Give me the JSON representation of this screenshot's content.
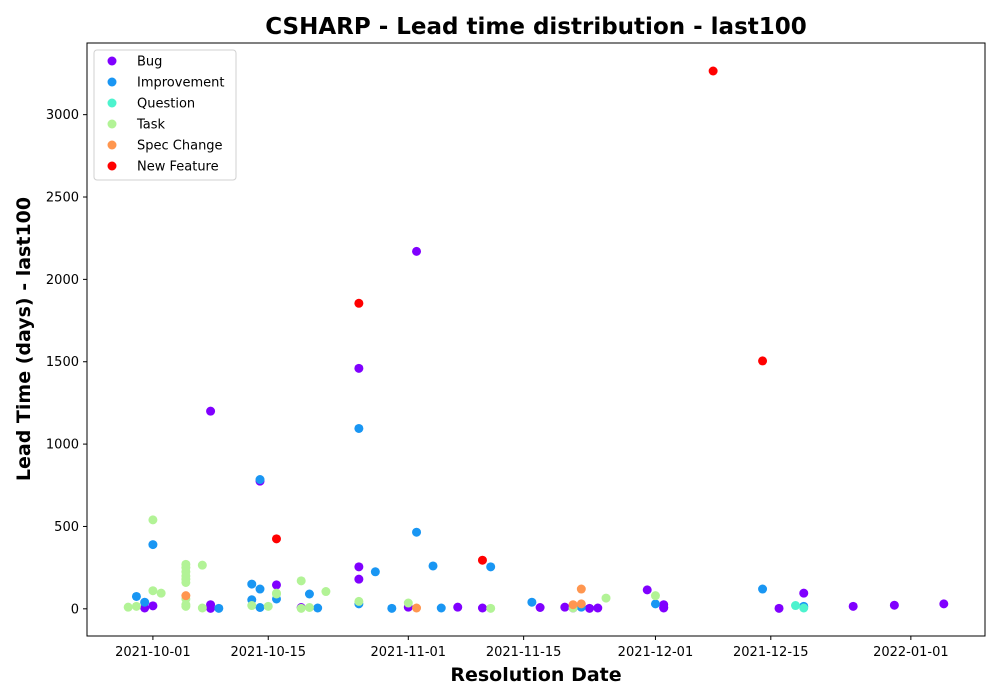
{
  "chart_data": {
    "type": "scatter",
    "title": "CSHARP - Lead time distribution - last100",
    "xlabel": "Resolution Date",
    "ylabel": "Lead Time (days) - last100",
    "xlim": [
      "2021-09-23",
      "2022-01-10"
    ],
    "ylim": [
      -165,
      3435
    ],
    "x_ticks": [
      "2021-10-01",
      "2021-10-15",
      "2021-11-01",
      "2021-11-15",
      "2021-12-01",
      "2021-12-15",
      "2022-01-01"
    ],
    "y_ticks": [
      0,
      500,
      1000,
      1500,
      2000,
      2500,
      3000
    ],
    "grid": false,
    "legend_position": "top-left",
    "series": [
      {
        "name": "Bug",
        "color": "#8000ff",
        "points": [
          {
            "x": "2021-09-30",
            "y": 5
          },
          {
            "x": "2021-10-01",
            "y": 18
          },
          {
            "x": "2021-10-08",
            "y": 1200
          },
          {
            "x": "2021-10-08",
            "y": 25
          },
          {
            "x": "2021-10-08",
            "y": 3
          },
          {
            "x": "2021-10-14",
            "y": 775
          },
          {
            "x": "2021-10-16",
            "y": 145
          },
          {
            "x": "2021-10-19",
            "y": 8
          },
          {
            "x": "2021-10-26",
            "y": 1460
          },
          {
            "x": "2021-10-26",
            "y": 255
          },
          {
            "x": "2021-10-26",
            "y": 180
          },
          {
            "x": "2021-11-01",
            "y": 10
          },
          {
            "x": "2021-11-02",
            "y": 2170
          },
          {
            "x": "2021-11-07",
            "y": 10
          },
          {
            "x": "2021-11-10",
            "y": 5
          },
          {
            "x": "2021-11-17",
            "y": 8
          },
          {
            "x": "2021-11-20",
            "y": 10
          },
          {
            "x": "2021-11-21",
            "y": 5
          },
          {
            "x": "2021-11-22",
            "y": 12
          },
          {
            "x": "2021-11-24",
            "y": 5
          },
          {
            "x": "2021-11-23",
            "y": 3
          },
          {
            "x": "2021-11-30",
            "y": 115
          },
          {
            "x": "2021-12-02",
            "y": 8
          },
          {
            "x": "2021-12-02",
            "y": 25
          },
          {
            "x": "2021-12-02",
            "y": 5
          },
          {
            "x": "2021-12-16",
            "y": 3
          },
          {
            "x": "2021-12-19",
            "y": 95
          },
          {
            "x": "2021-12-25",
            "y": 15
          },
          {
            "x": "2021-12-30",
            "y": 22
          },
          {
            "x": "2022-01-05",
            "y": 30
          }
        ]
      },
      {
        "name": "Improvement",
        "color": "#1996f3",
        "points": [
          {
            "x": "2021-09-29",
            "y": 75
          },
          {
            "x": "2021-09-30",
            "y": 40
          },
          {
            "x": "2021-10-01",
            "y": 390
          },
          {
            "x": "2021-10-09",
            "y": 3
          },
          {
            "x": "2021-10-13",
            "y": 150
          },
          {
            "x": "2021-10-13",
            "y": 55
          },
          {
            "x": "2021-10-14",
            "y": 785
          },
          {
            "x": "2021-10-14",
            "y": 120
          },
          {
            "x": "2021-10-14",
            "y": 8
          },
          {
            "x": "2021-10-16",
            "y": 60
          },
          {
            "x": "2021-10-20",
            "y": 90
          },
          {
            "x": "2021-10-21",
            "y": 5
          },
          {
            "x": "2021-10-26",
            "y": 1095
          },
          {
            "x": "2021-10-26",
            "y": 30
          },
          {
            "x": "2021-10-28",
            "y": 225
          },
          {
            "x": "2021-10-30",
            "y": 3
          },
          {
            "x": "2021-11-02",
            "y": 465
          },
          {
            "x": "2021-11-04",
            "y": 260
          },
          {
            "x": "2021-11-05",
            "y": 5
          },
          {
            "x": "2021-11-11",
            "y": 255
          },
          {
            "x": "2021-11-16",
            "y": 40
          },
          {
            "x": "2021-11-22",
            "y": 10
          },
          {
            "x": "2021-12-01",
            "y": 30
          },
          {
            "x": "2021-12-14",
            "y": 120
          },
          {
            "x": "2021-12-19",
            "y": 15
          }
        ]
      },
      {
        "name": "Question",
        "color": "#4df3ce",
        "points": [
          {
            "x": "2021-12-19",
            "y": 5
          },
          {
            "x": "2021-12-18",
            "y": 20
          }
        ]
      },
      {
        "name": "Task",
        "color": "#b2f396",
        "points": [
          {
            "x": "2021-09-28",
            "y": 10
          },
          {
            "x": "2021-09-29",
            "y": 15
          },
          {
            "x": "2021-10-01",
            "y": 540
          },
          {
            "x": "2021-10-01",
            "y": 110
          },
          {
            "x": "2021-10-02",
            "y": 95
          },
          {
            "x": "2021-10-05",
            "y": 270
          },
          {
            "x": "2021-10-05",
            "y": 250
          },
          {
            "x": "2021-10-05",
            "y": 225
          },
          {
            "x": "2021-10-05",
            "y": 200
          },
          {
            "x": "2021-10-05",
            "y": 180
          },
          {
            "x": "2021-10-05",
            "y": 160
          },
          {
            "x": "2021-10-05",
            "y": 60
          },
          {
            "x": "2021-10-05",
            "y": 25
          },
          {
            "x": "2021-10-05",
            "y": 15
          },
          {
            "x": "2021-10-07",
            "y": 265
          },
          {
            "x": "2021-10-07",
            "y": 5
          },
          {
            "x": "2021-10-13",
            "y": 20
          },
          {
            "x": "2021-10-15",
            "y": 15
          },
          {
            "x": "2021-10-16",
            "y": 95
          },
          {
            "x": "2021-10-16",
            "y": 90
          },
          {
            "x": "2021-10-19",
            "y": 170
          },
          {
            "x": "2021-10-19",
            "y": 3
          },
          {
            "x": "2021-10-20",
            "y": 8
          },
          {
            "x": "2021-10-22",
            "y": 105
          },
          {
            "x": "2021-10-26",
            "y": 45
          },
          {
            "x": "2021-11-01",
            "y": 35
          },
          {
            "x": "2021-11-11",
            "y": 3
          },
          {
            "x": "2021-11-21",
            "y": 5
          },
          {
            "x": "2021-11-25",
            "y": 65
          },
          {
            "x": "2021-12-01",
            "y": 80
          }
        ]
      },
      {
        "name": "Spec Change",
        "color": "#ff964f",
        "points": [
          {
            "x": "2021-10-05",
            "y": 80
          },
          {
            "x": "2021-11-02",
            "y": 5
          },
          {
            "x": "2021-11-21",
            "y": 25
          },
          {
            "x": "2021-11-22",
            "y": 120
          },
          {
            "x": "2021-11-22",
            "y": 30
          }
        ]
      },
      {
        "name": "New Feature",
        "color": "#ff0000",
        "points": [
          {
            "x": "2021-10-16",
            "y": 425
          },
          {
            "x": "2021-10-26",
            "y": 1855
          },
          {
            "x": "2021-11-10",
            "y": 295
          },
          {
            "x": "2021-12-08",
            "y": 3265
          },
          {
            "x": "2021-12-14",
            "y": 1505
          }
        ]
      }
    ]
  }
}
